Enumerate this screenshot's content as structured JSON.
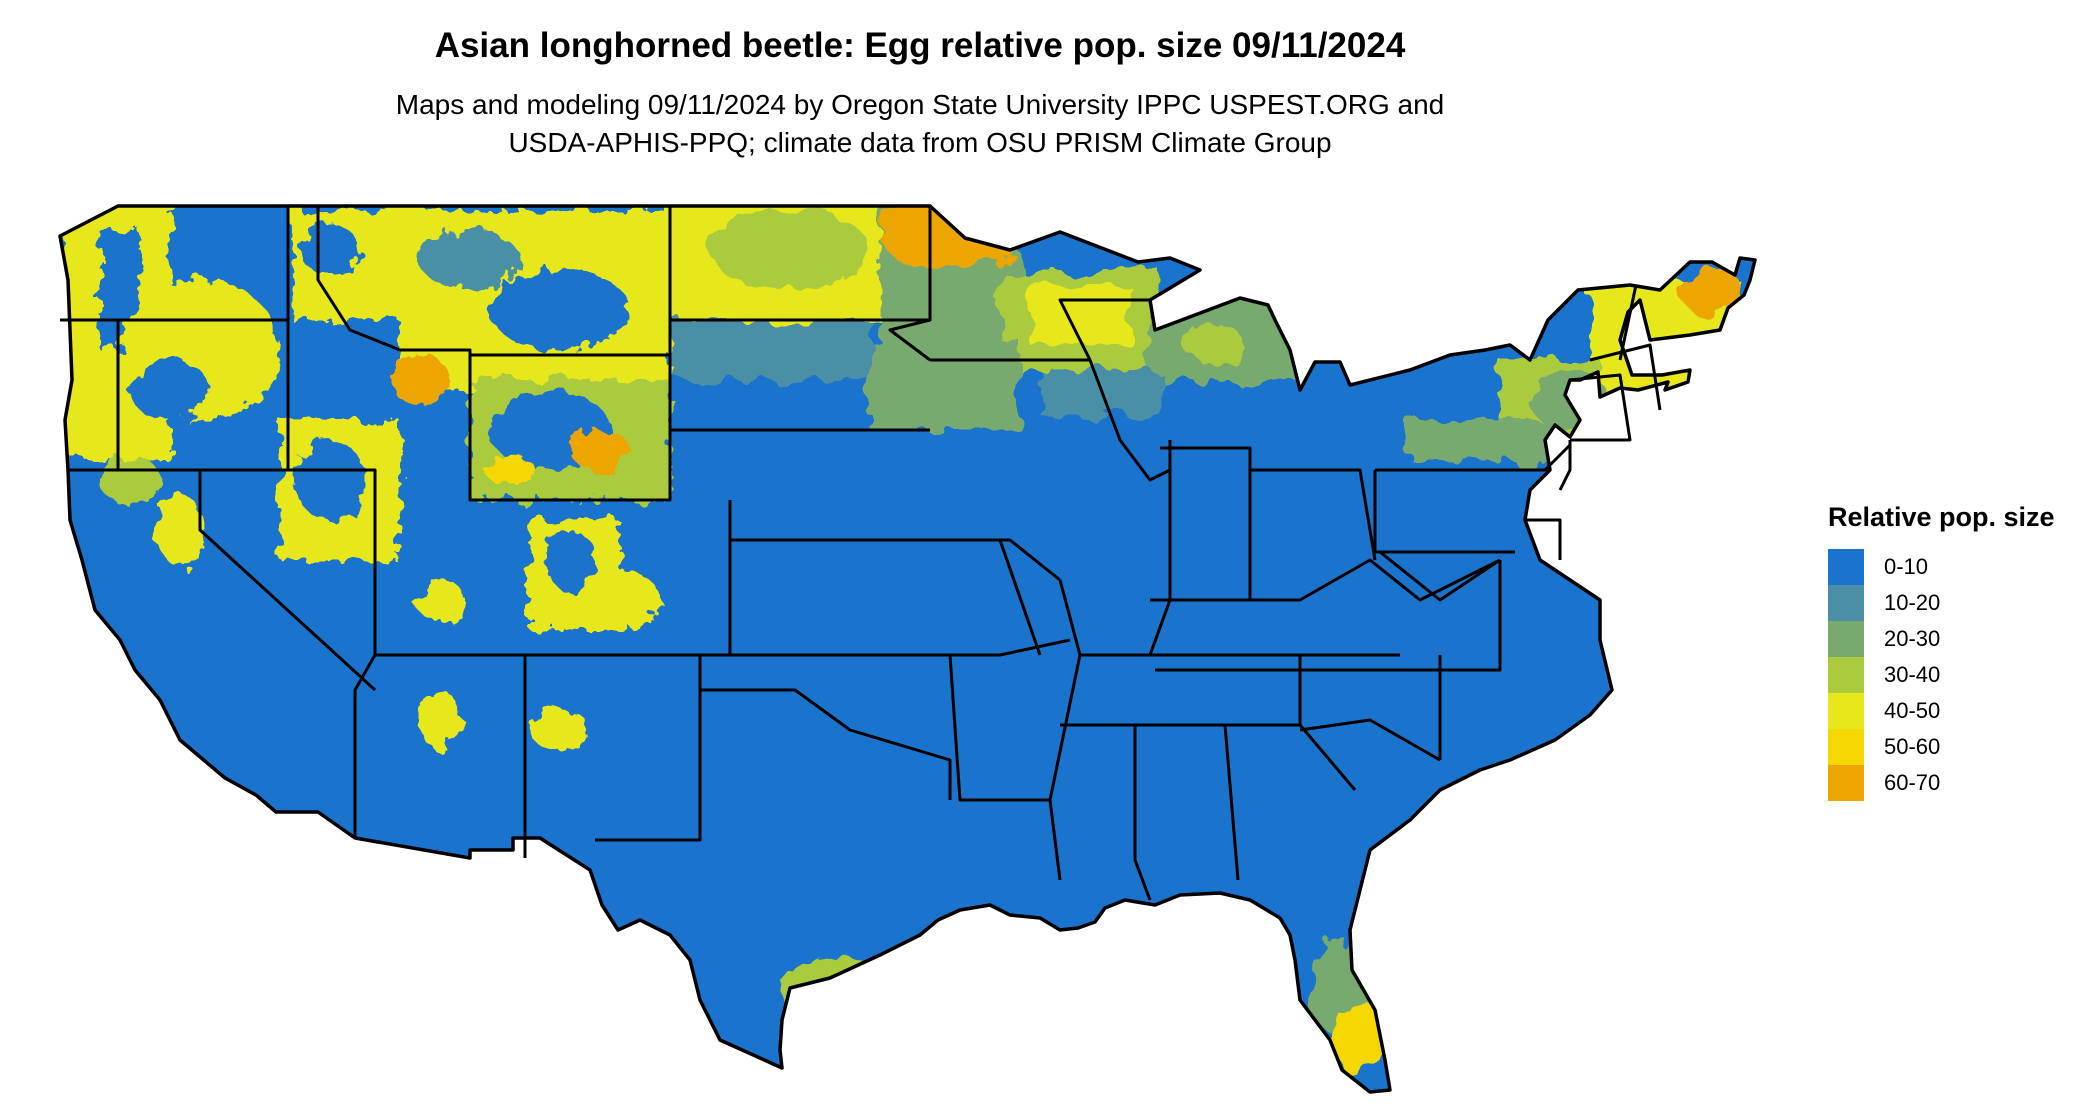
{
  "title": "Asian longhorned beetle: Egg relative pop. size 09/11/2024",
  "subtitle": {
    "line1": "Maps and modeling 09/11/2024 by Oregon State University IPPC USPEST.ORG and",
    "line2": "USDA-APHIS-PPQ; climate data from OSU PRISM Climate Group"
  },
  "legend": {
    "title": "Relative pop. size",
    "items": [
      {
        "label": "0-10",
        "color": "#1a73cc"
      },
      {
        "label": "10-20",
        "color": "#4a8fa5"
      },
      {
        "label": "20-30",
        "color": "#78aa6f"
      },
      {
        "label": "30-40",
        "color": "#aacb3c"
      },
      {
        "label": "40-50",
        "color": "#e6e81c"
      },
      {
        "label": "50-60",
        "color": "#f5d800"
      },
      {
        "label": "60-70",
        "color": "#eda500"
      }
    ]
  },
  "map": {
    "region": "Contiguous United States",
    "base_class": "0-10",
    "higher_value_areas": [
      "Pacific Northwest",
      "Northern Rockies",
      "Northern Plains",
      "Upper Great Lakes",
      "Northern New England",
      "South Texas",
      "South Florida"
    ]
  }
}
